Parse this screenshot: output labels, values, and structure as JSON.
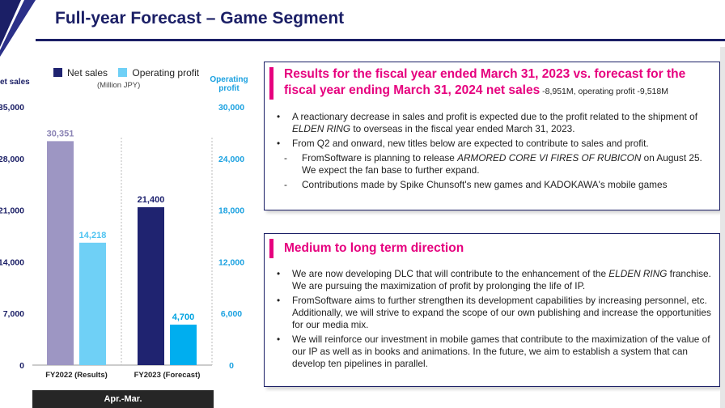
{
  "page_title": "Full-year Forecast – Game Segment",
  "chart_data": {
    "type": "bar",
    "categories": [
      "FY2022 (Results)",
      "FY2023 (Forecast)"
    ],
    "series": [
      {
        "name": "Net sales",
        "values": [
          30351,
          21400
        ],
        "labels": [
          "30,351",
          "21,400"
        ],
        "colors": [
          "#9d96c3",
          "#1f2370"
        ]
      },
      {
        "name": "Operating profit",
        "values": [
          14218,
          4700
        ],
        "labels": [
          "14,218",
          "4,700"
        ],
        "colors": [
          "#6fd0f6",
          "#00aeef"
        ]
      }
    ],
    "units": "(Million JPY)",
    "left_axis": {
      "title": "et sales",
      "ylim": [
        0,
        35000
      ],
      "ticks": [
        0,
        7000,
        14000,
        21000,
        28000,
        35000
      ],
      "tick_labels": [
        "0",
        "7,000",
        "14,000",
        "21,000",
        "28,000",
        "35,000"
      ]
    },
    "right_axis": {
      "title_line1": "Operating",
      "title_line2": "profit",
      "ylim": [
        0,
        30000
      ],
      "ticks": [
        0,
        6000,
        12000,
        18000,
        24000,
        30000
      ],
      "tick_labels": [
        "0",
        "6,000",
        "12,000",
        "18,000",
        "24,000",
        "30,000"
      ]
    },
    "period_label": "Apr.-Mar.",
    "legend_placement": "top"
  },
  "box1": {
    "title": "Results for the fiscal year ended March 31, 2023 vs. forecast for the fiscal year ending March 31, 2024 net sales",
    "title_suffix": " -8,951M, operating profit -9,518M",
    "bullet1": {
      "before": "A reactionary decrease in sales and profit is expected due to the profit related to the shipment of ",
      "em": "ELDEN RING",
      "after": " to overseas in the fiscal year ended March 31, 2023."
    },
    "bullet2": "From Q2 and onward, new titles below are expected to contribute to sales and profit.",
    "sub1": {
      "before": "FromSoftware is planning to release ",
      "em": "ARMORED CORE VI FIRES OF RUBICON",
      "after": " on August 25. We expect the fan base to further expand."
    },
    "sub2": "Contributions made by Spike Chunsoft's new games and KADOKAWA's mobile games"
  },
  "box2": {
    "title": "Medium to long term direction",
    "bullet1": {
      "before": "We are now developing DLC that will contribute to the enhancement of the ",
      "em": "ELDEN RING",
      "after": " franchise. We are pursuing the maximization of profit by prolonging the life of IP."
    },
    "bullet2": "FromSoftware aims to further strengthen its development capabilities by increasing personnel, etc.  Additionally, we will strive to expand the scope of our own publishing and increase the opportunities for our media mix.",
    "bullet3": "We will reinforce our investment in mobile games that contribute to the maximization of the value of our IP as well as in books and animations. In the future, we aim to establish a system that can develop ten pipelines in parallel."
  },
  "colors": {
    "navy": "#1b1f66",
    "magenta": "#e6007e",
    "cyan": "#1ba1e0"
  }
}
